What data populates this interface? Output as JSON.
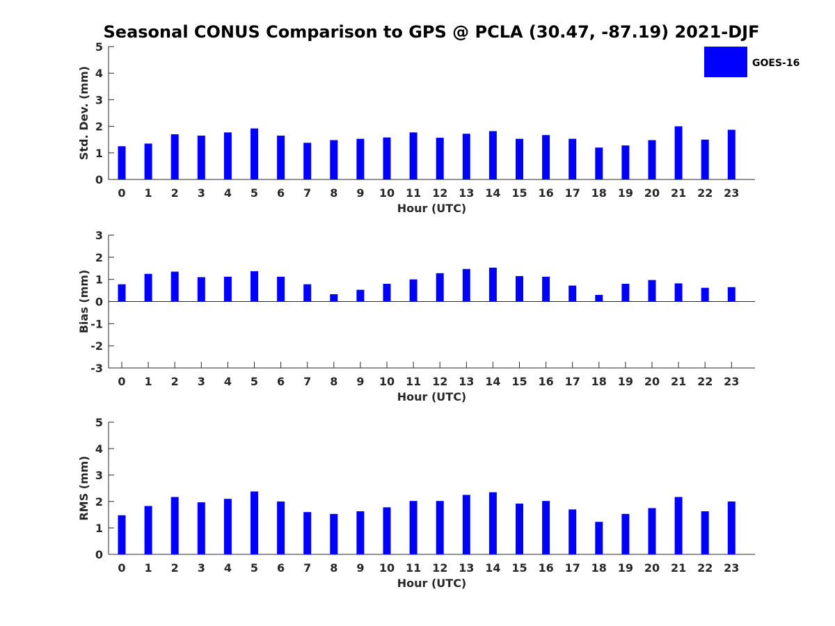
{
  "figure": {
    "title": "Seasonal CONUS Comparison to GPS @ PCLA (30.47, -87.19) 2021-DJF",
    "bar_color": "#0000ff",
    "legend": {
      "label": "GOES-16",
      "placement": "top-right"
    }
  },
  "chart_data": [
    {
      "type": "bar",
      "series": [
        {
          "name": "GOES-16",
          "values": [
            1.25,
            1.35,
            1.7,
            1.65,
            1.77,
            1.92,
            1.65,
            1.38,
            1.48,
            1.53,
            1.58,
            1.77,
            1.57,
            1.72,
            1.82,
            1.53,
            1.67,
            1.53,
            1.2,
            1.28,
            1.48,
            2.0,
            1.5,
            1.87
          ]
        }
      ],
      "categories": [
        "0",
        "1",
        "2",
        "3",
        "4",
        "5",
        "6",
        "7",
        "8",
        "9",
        "10",
        "11",
        "12",
        "13",
        "14",
        "15",
        "16",
        "17",
        "18",
        "19",
        "20",
        "21",
        "22",
        "23"
      ],
      "xlabel": "Hour (UTC)",
      "ylabel": "Std. Dev. (mm)",
      "ylim": [
        0,
        5
      ],
      "yticks": [
        "0",
        "1",
        "2",
        "3",
        "4",
        "5"
      ],
      "grid": false
    },
    {
      "type": "bar",
      "series": [
        {
          "name": "GOES-16",
          "values": [
            0.78,
            1.25,
            1.35,
            1.1,
            1.12,
            1.37,
            1.12,
            0.78,
            0.33,
            0.53,
            0.8,
            1.0,
            1.28,
            1.47,
            1.53,
            1.15,
            1.12,
            0.72,
            0.3,
            0.8,
            0.97,
            0.82,
            0.62,
            0.65
          ]
        }
      ],
      "categories": [
        "0",
        "1",
        "2",
        "3",
        "4",
        "5",
        "6",
        "7",
        "8",
        "9",
        "10",
        "11",
        "12",
        "13",
        "14",
        "15",
        "16",
        "17",
        "18",
        "19",
        "20",
        "21",
        "22",
        "23"
      ],
      "xlabel": "Hour (UTC)",
      "ylabel": "Bias (mm)",
      "ylim": [
        -3,
        3
      ],
      "yticks": [
        "-3",
        "-2",
        "-1",
        "0",
        "1",
        "2",
        "3"
      ],
      "grid": false
    },
    {
      "type": "bar",
      "series": [
        {
          "name": "GOES-16",
          "values": [
            1.48,
            1.83,
            2.17,
            1.97,
            2.1,
            2.38,
            2.0,
            1.6,
            1.53,
            1.63,
            1.78,
            2.02,
            2.02,
            2.25,
            2.35,
            1.92,
            2.02,
            1.7,
            1.23,
            1.53,
            1.75,
            2.17,
            1.63,
            2.0
          ]
        }
      ],
      "categories": [
        "0",
        "1",
        "2",
        "3",
        "4",
        "5",
        "6",
        "7",
        "8",
        "9",
        "10",
        "11",
        "12",
        "13",
        "14",
        "15",
        "16",
        "17",
        "18",
        "19",
        "20",
        "21",
        "22",
        "23"
      ],
      "xlabel": "Hour (UTC)",
      "ylabel": "RMS (mm)",
      "ylim": [
        0,
        5
      ],
      "yticks": [
        "0",
        "1",
        "2",
        "3",
        "4",
        "5"
      ],
      "grid": false
    }
  ]
}
